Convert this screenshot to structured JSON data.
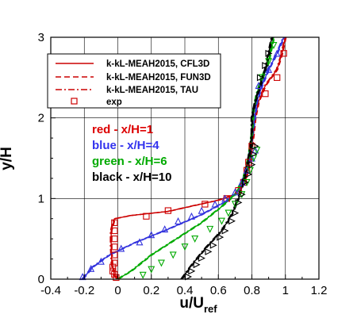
{
  "chart_data": {
    "type": "line",
    "xlabel": "u/U",
    "xlabel_sub": "ref",
    "ylabel": "y/H",
    "xlim": [
      -0.4,
      1.2
    ],
    "ylim": [
      0,
      3
    ],
    "xticks": [
      "-0.4",
      "-0.2",
      "0",
      "0.2",
      "0.4",
      "0.6",
      "0.8",
      "1",
      "1.2"
    ],
    "yticks": [
      "0",
      "1",
      "2",
      "3"
    ],
    "grid": true,
    "legend_position": "top-left",
    "legend": [
      {
        "label": "k-kL-MEAH2015, CFL3D",
        "style": "solid"
      },
      {
        "label": "k-kL-MEAH2015, FUN3D",
        "style": "dashed"
      },
      {
        "label": "k-kL-MEAH2015, TAU",
        "style": "dashdot"
      },
      {
        "label": "exp",
        "style": "marker"
      }
    ],
    "annotations": [
      {
        "text": "red - x/H=1",
        "color": "#dd0000"
      },
      {
        "text": "blue - x/H=4",
        "color": "#3333ee"
      },
      {
        "text": "green - x/H=6",
        "color": "#00aa00"
      },
      {
        "text": "black - x/H=10",
        "color": "#000000"
      }
    ],
    "series": [
      {
        "color": "#cc0000",
        "line": [
          [
            0.0,
            0
          ],
          [
            -0.02,
            0.05
          ],
          [
            -0.035,
            0.2
          ],
          [
            -0.04,
            0.4
          ],
          [
            -0.04,
            0.6
          ],
          [
            -0.02,
            0.75
          ],
          [
            0.08,
            0.79
          ],
          [
            0.3,
            0.84
          ],
          [
            0.6,
            0.98
          ],
          [
            0.7,
            1.05
          ],
          [
            0.76,
            1.2
          ],
          [
            0.79,
            1.5
          ],
          [
            0.81,
            1.8
          ],
          [
            0.82,
            2.0
          ],
          [
            0.84,
            2.2
          ],
          [
            0.88,
            2.4
          ],
          [
            0.95,
            2.6
          ],
          [
            0.98,
            2.8
          ],
          [
            1.0,
            3.0
          ]
        ],
        "exp_marker": "square",
        "exp": [
          [
            -0.01,
            0.02
          ],
          [
            -0.02,
            0.06
          ],
          [
            -0.03,
            0.1
          ],
          [
            -0.03,
            0.15
          ],
          [
            -0.02,
            0.2
          ],
          [
            -0.02,
            0.3
          ],
          [
            -0.02,
            0.4
          ],
          [
            -0.02,
            0.5
          ],
          [
            -0.02,
            0.6
          ],
          [
            -0.02,
            0.7
          ],
          [
            0.17,
            0.78
          ],
          [
            0.3,
            0.85
          ],
          [
            0.52,
            0.93
          ],
          [
            0.65,
            1.0
          ],
          [
            0.72,
            1.1
          ],
          [
            0.75,
            1.2
          ],
          [
            0.77,
            1.35
          ],
          [
            0.78,
            1.45
          ],
          [
            0.8,
            1.65
          ],
          [
            0.88,
            2.3
          ],
          [
            0.95,
            2.5
          ],
          [
            0.99,
            2.8
          ]
        ]
      },
      {
        "color": "#3333dd",
        "line": [
          [
            -0.21,
            0
          ],
          [
            -0.15,
            0.15
          ],
          [
            -0.05,
            0.3
          ],
          [
            0.1,
            0.45
          ],
          [
            0.3,
            0.62
          ],
          [
            0.5,
            0.8
          ],
          [
            0.65,
            0.97
          ],
          [
            0.72,
            1.1
          ],
          [
            0.76,
            1.3
          ],
          [
            0.79,
            1.6
          ],
          [
            0.81,
            1.9
          ],
          [
            0.83,
            2.2
          ],
          [
            0.86,
            2.4
          ],
          [
            0.9,
            2.6
          ],
          [
            0.95,
            2.8
          ],
          [
            0.99,
            3.0
          ]
        ],
        "exp_marker": "triangle-up",
        "exp": [
          [
            -0.21,
            0.03
          ],
          [
            -0.16,
            0.13
          ],
          [
            -0.1,
            0.22
          ],
          [
            0.02,
            0.38
          ],
          [
            0.13,
            0.46
          ],
          [
            0.2,
            0.55
          ],
          [
            0.28,
            0.62
          ],
          [
            0.36,
            0.72
          ],
          [
            0.44,
            0.78
          ],
          [
            0.5,
            0.85
          ],
          [
            0.58,
            0.93
          ],
          [
            0.64,
            1.0
          ],
          [
            0.7,
            1.08
          ],
          [
            0.74,
            1.2
          ],
          [
            0.77,
            1.35
          ],
          [
            0.8,
            1.5
          ],
          [
            0.82,
            1.6
          ],
          [
            0.84,
            2.4
          ],
          [
            0.9,
            2.6
          ],
          [
            0.95,
            2.8
          ]
        ]
      },
      {
        "color": "#00aa00",
        "line": [
          [
            0.0,
            0
          ],
          [
            0.08,
            0.1
          ],
          [
            0.2,
            0.3
          ],
          [
            0.35,
            0.5
          ],
          [
            0.5,
            0.7
          ],
          [
            0.62,
            0.9
          ],
          [
            0.7,
            1.05
          ],
          [
            0.75,
            1.25
          ],
          [
            0.78,
            1.5
          ],
          [
            0.8,
            1.8
          ],
          [
            0.81,
            2.1
          ],
          [
            0.83,
            2.3
          ],
          [
            0.86,
            2.5
          ],
          [
            0.9,
            2.7
          ],
          [
            0.93,
            3.0
          ]
        ],
        "exp_marker": "triangle-down",
        "exp": [
          [
            0.15,
            0.05
          ],
          [
            0.2,
            0.12
          ],
          [
            0.26,
            0.2
          ],
          [
            0.33,
            0.3
          ],
          [
            0.4,
            0.4
          ],
          [
            0.46,
            0.5
          ],
          [
            0.55,
            0.62
          ],
          [
            0.62,
            0.72
          ],
          [
            0.66,
            0.82
          ],
          [
            0.7,
            0.93
          ],
          [
            0.74,
            1.05
          ],
          [
            0.77,
            1.2
          ],
          [
            0.79,
            1.35
          ],
          [
            0.81,
            1.5
          ],
          [
            0.83,
            1.6
          ],
          [
            0.86,
            2.5
          ],
          [
            0.9,
            2.7
          ],
          [
            0.93,
            2.9
          ]
        ]
      },
      {
        "color": "#000000",
        "line": [
          [
            0.38,
            0
          ],
          [
            0.45,
            0.2
          ],
          [
            0.53,
            0.4
          ],
          [
            0.62,
            0.6
          ],
          [
            0.68,
            0.8
          ],
          [
            0.72,
            1.0
          ],
          [
            0.75,
            1.2
          ],
          [
            0.77,
            1.4
          ],
          [
            0.79,
            1.6
          ],
          [
            0.8,
            1.8
          ],
          [
            0.8,
            2.0
          ],
          [
            0.82,
            2.2
          ],
          [
            0.85,
            2.4
          ],
          [
            0.88,
            2.6
          ],
          [
            0.9,
            2.8
          ],
          [
            0.92,
            3.0
          ]
        ],
        "exp_marker": "triangle-right",
        "exp": [
          [
            0.42,
            0.03
          ],
          [
            0.44,
            0.1
          ],
          [
            0.47,
            0.18
          ],
          [
            0.5,
            0.26
          ],
          [
            0.54,
            0.34
          ],
          [
            0.57,
            0.42
          ],
          [
            0.61,
            0.52
          ],
          [
            0.64,
            0.6
          ],
          [
            0.68,
            0.72
          ],
          [
            0.7,
            0.82
          ],
          [
            0.72,
            0.95
          ],
          [
            0.74,
            1.05
          ],
          [
            0.76,
            1.2
          ],
          [
            0.78,
            1.3
          ],
          [
            0.8,
            1.42
          ],
          [
            0.81,
            1.55
          ],
          [
            0.82,
            1.65
          ],
          [
            0.85,
            2.5
          ],
          [
            0.88,
            2.65
          ],
          [
            0.9,
            2.8
          ]
        ]
      }
    ]
  }
}
